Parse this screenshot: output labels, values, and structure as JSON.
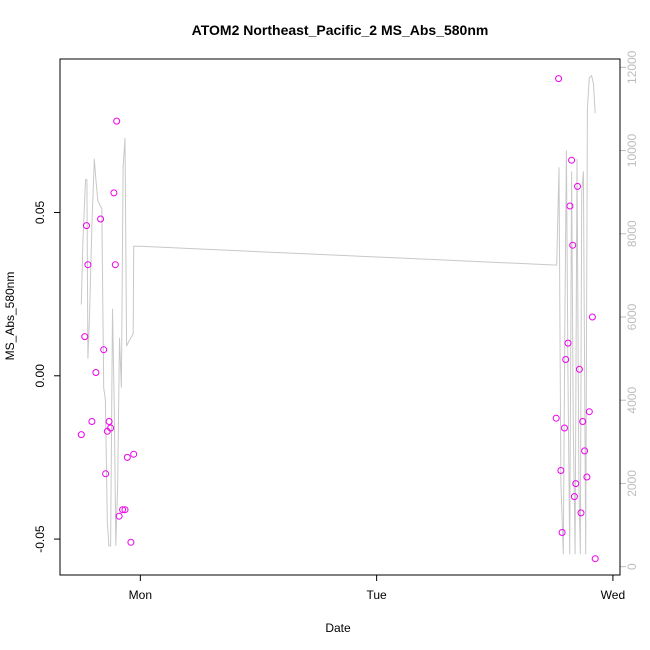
{
  "chart_data": {
    "type": "scatter",
    "title": "ATOM2 Northeast_Pacific_2 MS_Abs_580nm",
    "xlabel": "Date",
    "ylabel": "MS_Abs_580nm",
    "x_unit": "days since Mon 00:00",
    "xlim": [
      -0.34,
      2.03
    ],
    "ylim": [
      -0.061,
      0.097
    ],
    "ylim_right": [
      -200,
      12200
    ],
    "x_ticks": [
      {
        "value": 0,
        "label": "Mon"
      },
      {
        "value": 1,
        "label": "Tue"
      },
      {
        "value": 2,
        "label": "Wed"
      }
    ],
    "y_ticks": [
      {
        "value": -0.05,
        "label": "-0.05"
      },
      {
        "value": 0.0,
        "label": "0.00"
      },
      {
        "value": 0.05,
        "label": "0.05"
      }
    ],
    "y_ticks_right": [
      {
        "value": 0,
        "label": "0"
      },
      {
        "value": 2000,
        "label": "2000"
      },
      {
        "value": 4000,
        "label": "4000"
      },
      {
        "value": 6000,
        "label": "6000"
      },
      {
        "value": 8000,
        "label": "8000"
      },
      {
        "value": 10000,
        "label": "10000"
      },
      {
        "value": 12000,
        "label": "12000"
      }
    ],
    "grid": false,
    "series": [
      {
        "kind": "points",
        "color": "#ee00ee",
        "axis": "left",
        "points": [
          {
            "x": -0.25,
            "y": -0.018
          },
          {
            "x": -0.235,
            "y": 0.012
          },
          {
            "x": -0.228,
            "y": 0.046
          },
          {
            "x": -0.222,
            "y": 0.034
          },
          {
            "x": -0.205,
            "y": -0.014
          },
          {
            "x": -0.188,
            "y": 0.001
          },
          {
            "x": -0.168,
            "y": 0.048
          },
          {
            "x": -0.155,
            "y": 0.008
          },
          {
            "x": -0.147,
            "y": -0.03
          },
          {
            "x": -0.14,
            "y": -0.017
          },
          {
            "x": -0.132,
            "y": -0.014
          },
          {
            "x": -0.126,
            "y": -0.016
          },
          {
            "x": -0.112,
            "y": 0.056
          },
          {
            "x": -0.106,
            "y": 0.034
          },
          {
            "x": -0.1,
            "y": 0.078
          },
          {
            "x": -0.09,
            "y": -0.043
          },
          {
            "x": -0.075,
            "y": -0.041
          },
          {
            "x": -0.065,
            "y": -0.041
          },
          {
            "x": -0.055,
            "y": -0.025
          },
          {
            "x": -0.04,
            "y": -0.051
          },
          {
            "x": -0.028,
            "y": -0.024
          },
          {
            "x": 1.76,
            "y": -0.013
          },
          {
            "x": 1.77,
            "y": 0.091
          },
          {
            "x": 1.78,
            "y": -0.029
          },
          {
            "x": 1.785,
            "y": -0.048
          },
          {
            "x": 1.795,
            "y": -0.016
          },
          {
            "x": 1.8,
            "y": 0.005
          },
          {
            "x": 1.81,
            "y": 0.01
          },
          {
            "x": 1.818,
            "y": 0.052
          },
          {
            "x": 1.825,
            "y": 0.066
          },
          {
            "x": 1.83,
            "y": 0.04
          },
          {
            "x": 1.837,
            "y": -0.037
          },
          {
            "x": 1.843,
            "y": -0.033
          },
          {
            "x": 1.85,
            "y": 0.058
          },
          {
            "x": 1.858,
            "y": 0.002
          },
          {
            "x": 1.865,
            "y": -0.042
          },
          {
            "x": 1.872,
            "y": -0.014
          },
          {
            "x": 1.88,
            "y": -0.023
          },
          {
            "x": 1.89,
            "y": -0.031
          },
          {
            "x": 1.9,
            "y": -0.011
          },
          {
            "x": 1.913,
            "y": 0.018
          },
          {
            "x": 1.925,
            "y": -0.056
          }
        ]
      },
      {
        "kind": "line",
        "color": "#c8c8c8",
        "axis": "right",
        "points": [
          {
            "x": -0.25,
            "y": 6300
          },
          {
            "x": -0.243,
            "y": 7800
          },
          {
            "x": -0.232,
            "y": 9300
          },
          {
            "x": -0.226,
            "y": 9300
          },
          {
            "x": -0.222,
            "y": 5000
          },
          {
            "x": -0.215,
            "y": 6000
          },
          {
            "x": -0.205,
            "y": 8200
          },
          {
            "x": -0.195,
            "y": 9800
          },
          {
            "x": -0.188,
            "y": 9300
          },
          {
            "x": -0.18,
            "y": 8800
          },
          {
            "x": -0.172,
            "y": 8700
          },
          {
            "x": -0.163,
            "y": 8600
          },
          {
            "x": -0.155,
            "y": 4300
          },
          {
            "x": -0.148,
            "y": 4000
          },
          {
            "x": -0.14,
            "y": 1100
          },
          {
            "x": -0.133,
            "y": 500
          },
          {
            "x": -0.126,
            "y": 500
          },
          {
            "x": -0.118,
            "y": 6200
          },
          {
            "x": -0.11,
            "y": 3800
          },
          {
            "x": -0.104,
            "y": 500
          },
          {
            "x": -0.096,
            "y": 2000
          },
          {
            "x": -0.088,
            "y": 5500
          },
          {
            "x": -0.08,
            "y": 4300
          },
          {
            "x": -0.073,
            "y": 9600
          },
          {
            "x": -0.065,
            "y": 10300
          },
          {
            "x": -0.058,
            "y": 5300
          },
          {
            "x": -0.05,
            "y": 5400
          },
          {
            "x": -0.04,
            "y": 5500
          },
          {
            "x": -0.03,
            "y": 5600
          },
          {
            "x": -0.028,
            "y": 7700
          },
          {
            "x": 0.0,
            "y": 7700
          },
          {
            "x": 1.75,
            "y": 7250
          },
          {
            "x": 1.762,
            "y": 7250
          },
          {
            "x": 1.772,
            "y": 9600
          },
          {
            "x": 1.78,
            "y": 2000
          },
          {
            "x": 1.79,
            "y": 300
          },
          {
            "x": 1.797,
            "y": 6000
          },
          {
            "x": 1.803,
            "y": 10000
          },
          {
            "x": 1.81,
            "y": 4500
          },
          {
            "x": 1.817,
            "y": 300
          },
          {
            "x": 1.825,
            "y": 9500
          },
          {
            "x": 1.832,
            "y": 3500
          },
          {
            "x": 1.84,
            "y": 300
          },
          {
            "x": 1.848,
            "y": 9800
          },
          {
            "x": 1.856,
            "y": 2000
          },
          {
            "x": 1.862,
            "y": 300
          },
          {
            "x": 1.868,
            "y": 9000
          },
          {
            "x": 1.875,
            "y": 9500
          },
          {
            "x": 1.885,
            "y": 300
          },
          {
            "x": 1.892,
            "y": 11000
          },
          {
            "x": 1.9,
            "y": 11750
          },
          {
            "x": 1.91,
            "y": 11800
          },
          {
            "x": 1.918,
            "y": 11600
          },
          {
            "x": 1.925,
            "y": 10900
          }
        ]
      }
    ]
  }
}
